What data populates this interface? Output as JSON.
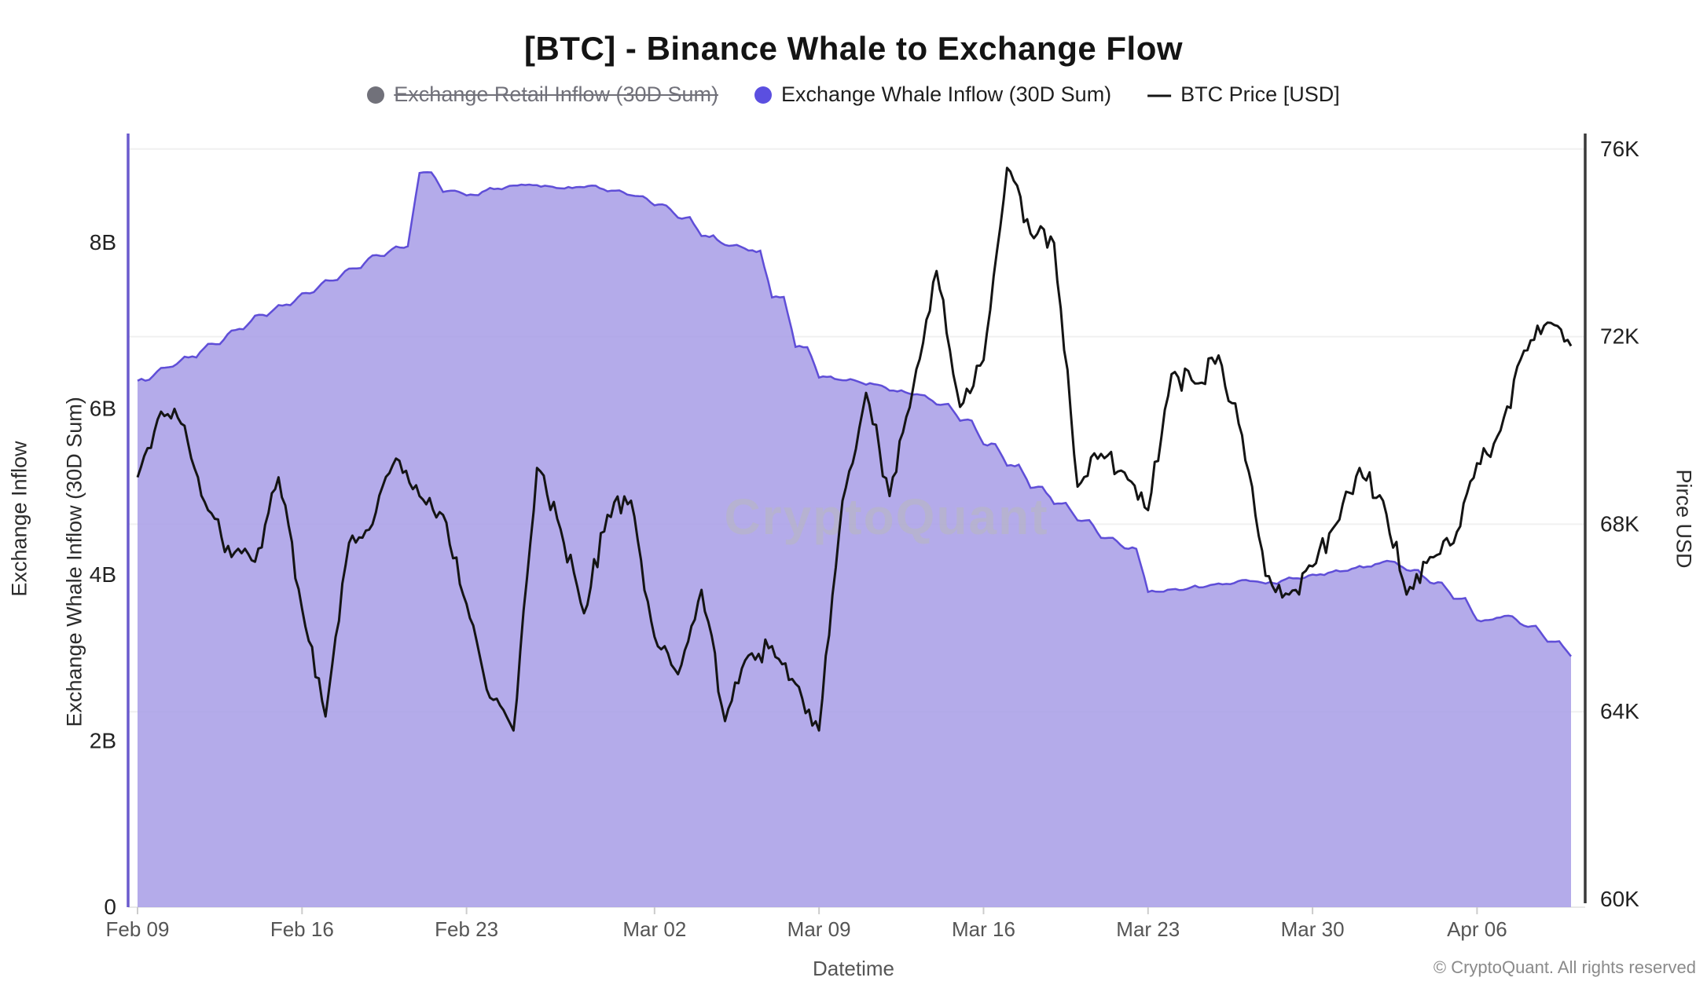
{
  "title": "[BTC] - Binance Whale to Exchange Flow",
  "legend": [
    {
      "label": "Exchange Retail Inflow (30D Sum)",
      "marker": "dot",
      "color": "#71717a",
      "disabled": true
    },
    {
      "label": "Exchange Whale Inflow (30D Sum)",
      "marker": "dot",
      "color": "#5b4fe0",
      "disabled": false
    },
    {
      "label": "BTC Price [USD]",
      "marker": "line",
      "color": "#141414",
      "disabled": false
    }
  ],
  "watermark": "CryptoQuant",
  "footer": "© CryptoQuant. All rights reserved",
  "axes": {
    "left_outer_label": "Exchange Inflow",
    "left_inner_label": "Exchange Whale Inflow (30D Sum)",
    "right_label": "Pirce USD",
    "x_label": "Datetime",
    "left_ticks": [
      {
        "label": "8B",
        "value": 8
      },
      {
        "label": "6B",
        "value": 6
      },
      {
        "label": "4B",
        "value": 4
      },
      {
        "label": "2B",
        "value": 2
      },
      {
        "label": "0",
        "value": 0
      }
    ],
    "right_ticks": [
      {
        "label": "76K",
        "value": 76
      },
      {
        "label": "72K",
        "value": 72
      },
      {
        "label": "68K",
        "value": 68
      },
      {
        "label": "64K",
        "value": 64
      },
      {
        "label": "60K",
        "value": 60
      }
    ],
    "x_ticks": [
      {
        "label": "Feb 09",
        "day": 0
      },
      {
        "label": "Feb 16",
        "day": 7
      },
      {
        "label": "Feb 23",
        "day": 14
      },
      {
        "label": "Mar 02",
        "day": 22
      },
      {
        "label": "Mar 09",
        "day": 29
      },
      {
        "label": "Mar 16",
        "day": 36
      },
      {
        "label": "Mar 23",
        "day": 43
      },
      {
        "label": "Mar 30",
        "day": 50
      },
      {
        "label": "Apr 06",
        "day": 57
      }
    ]
  },
  "colors": {
    "area_fill": "#a79ce6",
    "area_stroke": "#5847d6",
    "price_line": "#141414",
    "grid": "#f0f0f0",
    "spine_left": "#6a5acd",
    "spine_right": "#3a3a3a",
    "tick_text": "#222222",
    "x_tick_text": "#555555",
    "watermark": "#b7b7c0"
  },
  "chart_data": {
    "type": "area+line",
    "title": "[BTC] - Binance Whale to Exchange Flow",
    "xlabel": "Datetime",
    "x_dates": [
      "Feb 09",
      "Feb 10",
      "Feb 11",
      "Feb 12",
      "Feb 13",
      "Feb 14",
      "Feb 15",
      "Feb 16",
      "Feb 17",
      "Feb 18",
      "Feb 19",
      "Feb 20",
      "Feb 21",
      "Feb 22",
      "Feb 23",
      "Feb 24",
      "Feb 25",
      "Feb 26",
      "Feb 27",
      "Feb 28",
      "Feb 29",
      "Mar 01",
      "Mar 02",
      "Mar 03",
      "Mar 04",
      "Mar 05",
      "Mar 06",
      "Mar 07",
      "Mar 08",
      "Mar 09",
      "Mar 10",
      "Mar 11",
      "Mar 12",
      "Mar 13",
      "Mar 14",
      "Mar 15",
      "Mar 16",
      "Mar 17",
      "Mar 18",
      "Mar 19",
      "Mar 20",
      "Mar 21",
      "Mar 22",
      "Mar 23",
      "Mar 24",
      "Mar 25",
      "Mar 26",
      "Mar 27",
      "Mar 28",
      "Mar 29",
      "Mar 30",
      "Mar 31",
      "Apr 01",
      "Apr 02",
      "Apr 03",
      "Apr 04",
      "Apr 05",
      "Apr 06",
      "Apr 07",
      "Apr 08",
      "Apr 09",
      "Apr 10"
    ],
    "series": [
      {
        "name": "Exchange Whale Inflow (30D Sum)",
        "axis": "left",
        "unit": "B",
        "ylim": [
          0,
          9.4
        ],
        "style": "area-step",
        "values": [
          6.35,
          6.5,
          6.62,
          6.78,
          6.95,
          7.12,
          7.25,
          7.4,
          7.55,
          7.7,
          7.85,
          7.95,
          8.85,
          8.62,
          8.58,
          8.65,
          8.7,
          8.68,
          8.66,
          8.68,
          8.62,
          8.56,
          8.45,
          8.3,
          8.08,
          7.97,
          7.9,
          7.35,
          6.75,
          6.38,
          6.35,
          6.3,
          6.22,
          6.17,
          6.05,
          5.86,
          5.57,
          5.32,
          5.06,
          4.86,
          4.66,
          4.45,
          4.32,
          3.8,
          3.82,
          3.86,
          3.89,
          3.93,
          3.9,
          3.96,
          4.0,
          4.05,
          4.1,
          4.16,
          4.05,
          3.9,
          3.72,
          3.45,
          3.5,
          3.38,
          3.2,
          3.02
        ]
      },
      {
        "name": "BTC Price [USD]",
        "axis": "right",
        "unit": "K",
        "ylim": [
          60,
          76.5
        ],
        "style": "line",
        "values": [
          69.0,
          70.4,
          70.1,
          68.3,
          67.3,
          67.2,
          69.0,
          66.2,
          63.9,
          67.6,
          68.0,
          69.4,
          68.6,
          68.2,
          66.3,
          64.3,
          63.6,
          69.2,
          67.9,
          66.1,
          68.2,
          68.5,
          65.6,
          64.8,
          66.6,
          63.8,
          65.2,
          65.4,
          64.6,
          63.6,
          68.5,
          70.8,
          68.6,
          70.9,
          73.4,
          70.5,
          71.5,
          75.6,
          74.2,
          74.0,
          68.8,
          69.5,
          69.1,
          68.3,
          71.2,
          71.0,
          71.6,
          69.9,
          66.9,
          66.5,
          67.1,
          68.0,
          69.2,
          68.5,
          66.5,
          67.3,
          67.6,
          69.3,
          70.0,
          71.7,
          72.3,
          71.8
        ]
      }
    ],
    "legend_position": "top",
    "grid": "horizontal-faint"
  }
}
